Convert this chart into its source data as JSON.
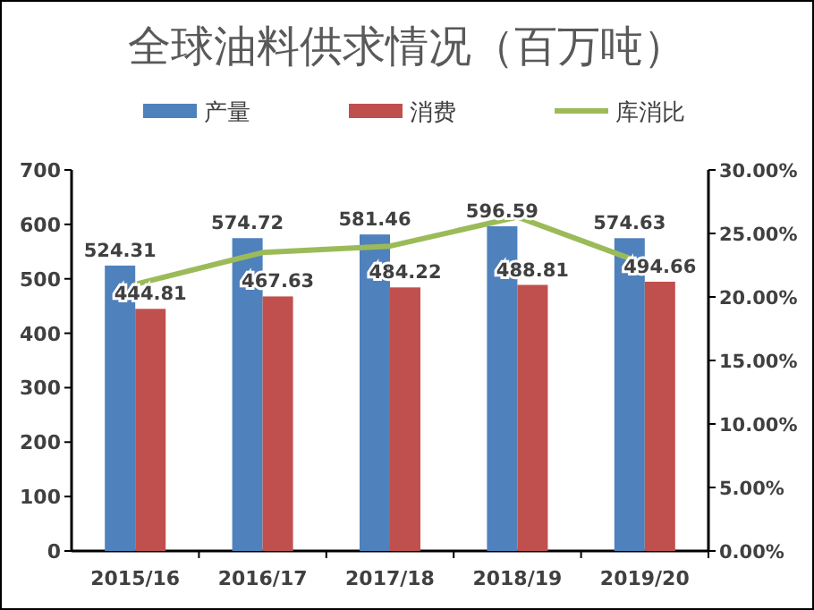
{
  "chart_data": {
    "type": "bar",
    "title": "全球油料供求情况（百万吨）",
    "categories": [
      "2015/16",
      "2016/17",
      "2017/18",
      "2018/19",
      "2019/20"
    ],
    "series": [
      {
        "name": "产量",
        "color": "#4f81bd",
        "values": [
          524.31,
          574.72,
          581.46,
          596.59,
          574.63
        ],
        "value_labels": [
          "524.31",
          "574.72",
          "581.46",
          "596.59",
          "574.63"
        ]
      },
      {
        "name": "消费",
        "color": "#c0504d",
        "values": [
          444.81,
          467.63,
          484.22,
          488.81,
          494.66
        ],
        "value_labels": [
          "444.81",
          "467.63",
          "484.22",
          "488.81",
          "494.66"
        ]
      },
      {
        "name": "库消比",
        "type": "line",
        "axis": "y2",
        "color": "#9bbb59",
        "values": [
          21.0,
          23.5,
          24.0,
          26.3,
          22.6
        ]
      }
    ],
    "ylim": [
      0,
      700
    ],
    "yticks": [
      0,
      100,
      200,
      300,
      400,
      500,
      600,
      700
    ],
    "y2lim": [
      0,
      30
    ],
    "y2ticks": [
      {
        "value": 0,
        "label": "0.00%"
      },
      {
        "value": 5,
        "label": "5.00%"
      },
      {
        "value": 10,
        "label": "10.00%"
      },
      {
        "value": 15,
        "label": "15.00%"
      },
      {
        "value": 20,
        "label": "20.00%"
      },
      {
        "value": 25,
        "label": "25.00%"
      },
      {
        "value": 30,
        "label": "30.00%"
      }
    ],
    "legend": "top"
  }
}
